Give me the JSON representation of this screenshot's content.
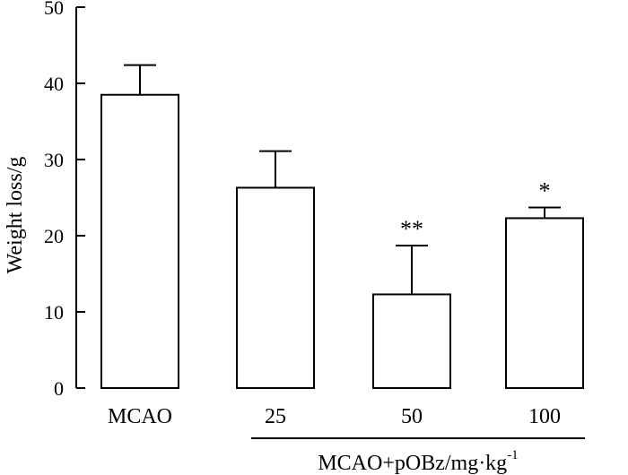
{
  "chart_data": {
    "type": "bar",
    "title": "",
    "xlabel": "",
    "ylabel": "Weight loss/g",
    "ylim": [
      0,
      50
    ],
    "yticks": [
      0,
      10,
      20,
      30,
      40,
      50
    ],
    "categories": [
      "MCAO",
      "25",
      "50",
      "100"
    ],
    "values": [
      38.5,
      26.3,
      12.3,
      22.3
    ],
    "errors": [
      3.9,
      4.8,
      6.4,
      1.4
    ],
    "significance": [
      "",
      "",
      "**",
      "*"
    ],
    "group_label": {
      "text": "MCAO+pOBz/mg·kg",
      "superscript": "-1",
      "covers": [
        "25",
        "50",
        "100"
      ]
    },
    "colors": {
      "bar_fill": "#ffffff",
      "bar_stroke": "#000000"
    }
  }
}
